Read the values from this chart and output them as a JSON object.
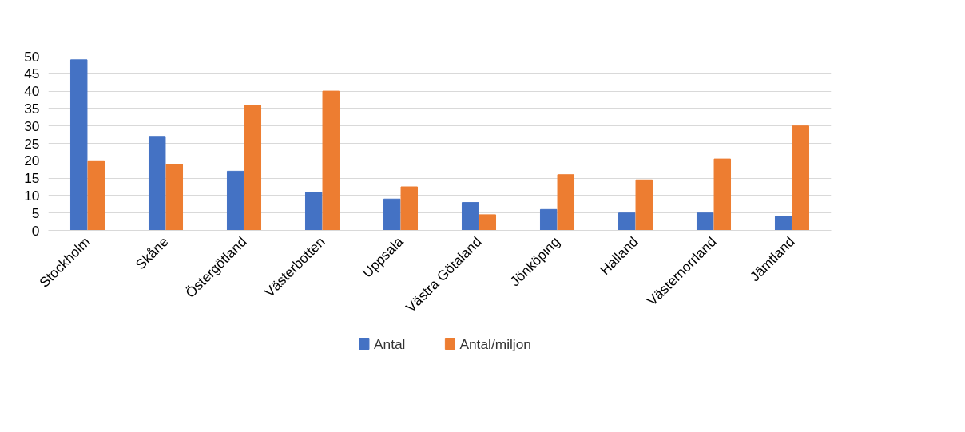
{
  "chart_data": {
    "type": "bar",
    "categories": [
      "Stockholm",
      "Skåne",
      "Östergötland",
      "Västerbotten",
      "Uppsala",
      "Västra Götaland",
      "Jönköping",
      "Halland",
      "Västernorrland",
      "Jämtland"
    ],
    "series": [
      {
        "name": "Antal",
        "color": "#4472c4",
        "values": [
          49,
          27,
          17,
          11,
          9,
          8,
          6,
          5,
          5,
          4
        ]
      },
      {
        "name": "Antal/miljon",
        "color": "#ed7d31",
        "values": [
          20,
          19,
          36,
          40,
          12.5,
          4.5,
          16,
          14.5,
          20.5,
          30
        ]
      }
    ],
    "ylim": [
      0,
      50
    ],
    "yticks": [
      0,
      5,
      10,
      15,
      20,
      25,
      30,
      35,
      40,
      45,
      50
    ],
    "grid": "y",
    "legend": "bottom"
  }
}
